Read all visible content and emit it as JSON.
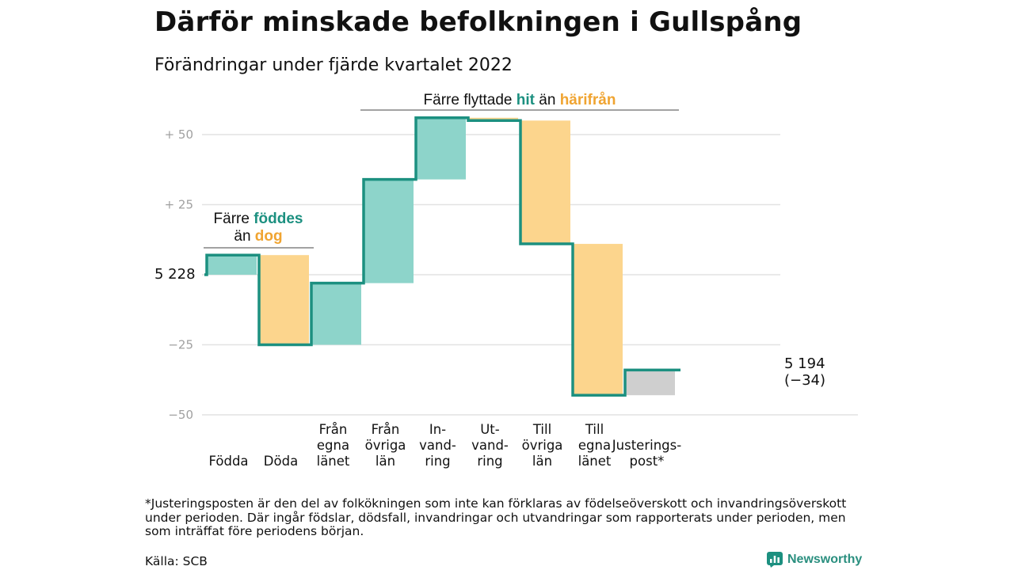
{
  "title": "Därför minskade befolkningen i Gullspång",
  "subtitle": "Förändringar under fjärde kvartalet 2022",
  "colors": {
    "pos": "#8dd4ca",
    "neg": "#fcd58d",
    "adj": "#cfcfcf",
    "line": "#1c9080",
    "hit": "#1c9080",
    "dog": "#f0a431",
    "grid": "#e2e2e2"
  },
  "chart_data": {
    "type": "waterfall",
    "start": 5228,
    "start_label": "5 228",
    "end_label_value": "5 194",
    "end_label_change": "(−34)",
    "yticks": [
      {
        "v": 50,
        "label": "+ 50"
      },
      {
        "v": 25,
        "label": "+ 25"
      },
      {
        "v": -25,
        "label": "−25"
      },
      {
        "v": -50,
        "label": "−50"
      }
    ],
    "ylim": [
      -50,
      57
    ],
    "steps": [
      {
        "lines": [
          "Födda"
        ],
        "delta": 7,
        "kind": "pos"
      },
      {
        "lines": [
          "Döda"
        ],
        "delta": -32,
        "kind": "neg"
      },
      {
        "lines": [
          "Från",
          "egna",
          "länet"
        ],
        "delta": 22,
        "kind": "pos"
      },
      {
        "lines": [
          "Från",
          "övriga",
          "län"
        ],
        "delta": 37,
        "kind": "pos"
      },
      {
        "lines": [
          "In-",
          "vand-",
          "ring"
        ],
        "delta": 22,
        "kind": "pos"
      },
      {
        "lines": [
          "Ut-",
          "vand-",
          "ring"
        ],
        "delta": -1,
        "kind": "neg"
      },
      {
        "lines": [
          "Till",
          "övriga",
          "län"
        ],
        "delta": -44,
        "kind": "neg"
      },
      {
        "lines": [
          "Till",
          "egna",
          "länet"
        ],
        "delta": -54,
        "kind": "neg"
      },
      {
        "lines": [
          "Justerings-",
          "post*"
        ],
        "delta": 9,
        "kind": "adj"
      }
    ],
    "annotations": {
      "births": {
        "line1_pre": "Färre ",
        "line1_hl": "föddes",
        "line2_pre": "än ",
        "line2_hl": "dog"
      },
      "moves": {
        "pre": "Färre flyttade ",
        "hl1": "hit",
        "mid": " än ",
        "hl2": "härifrån"
      }
    }
  },
  "footnote": "*Justeringsposten är den del av folkökningen som inte kan förklaras av födelseöverskott och invandringsöverskott under perioden. Där ingår födslar, dödsfall, invandringar och utvandringar som rapporterats under perioden, men som inträffat före periodens början.",
  "source": "Källa: SCB",
  "brand": {
    "name": "Newsworthy",
    "icon": "bar-chart-icon"
  }
}
